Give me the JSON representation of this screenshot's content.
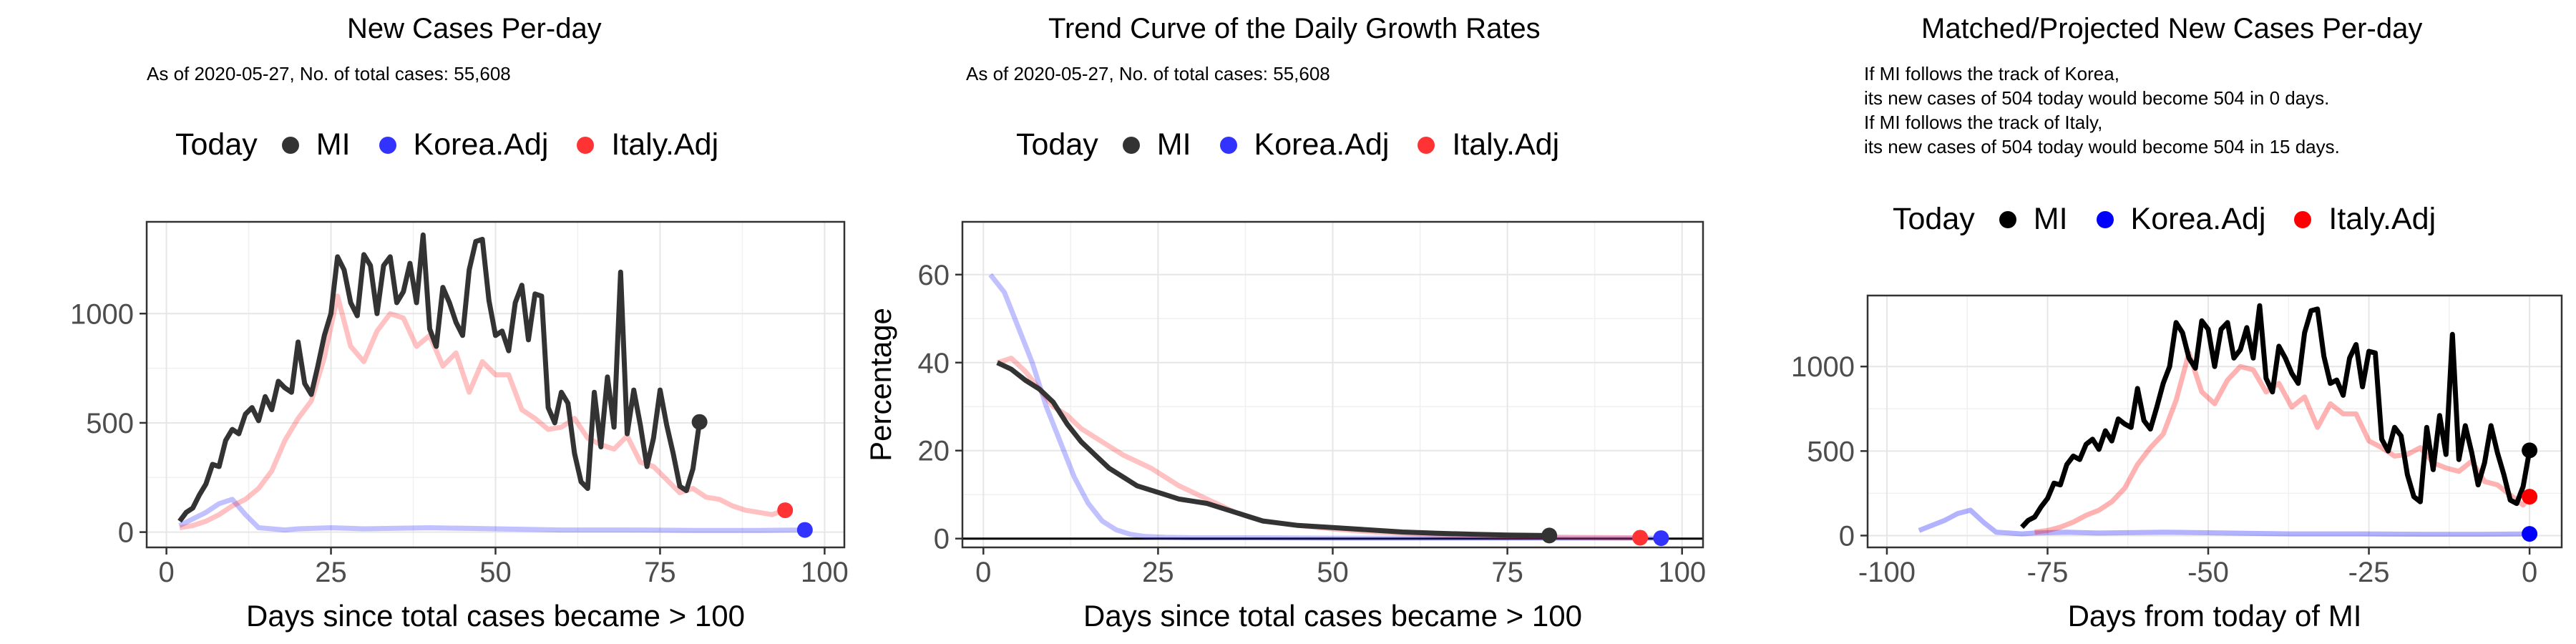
{
  "panels": [
    {
      "title": "New Cases Per-day",
      "subtitle_lines": [
        "As of 2020-05-27, No. of total cases: 55,608"
      ],
      "legend": {
        "title": "Today",
        "items": [
          {
            "label": "MI",
            "color": "#333333"
          },
          {
            "label": "Korea.Adj",
            "color": "#3333ff"
          },
          {
            "label": "Italy.Adj",
            "color": "#ff3333"
          }
        ]
      }
    },
    {
      "title": "Trend Curve of the Daily Growth Rates",
      "subtitle_lines": [
        "As of 2020-05-27, No. of total cases: 55,608"
      ],
      "legend": {
        "title": "Today",
        "items": [
          {
            "label": "MI",
            "color": "#333333"
          },
          {
            "label": "Korea.Adj",
            "color": "#3333ff"
          },
          {
            "label": "Italy.Adj",
            "color": "#ff3333"
          }
        ]
      }
    },
    {
      "title": "Matched/Projected New Cases Per-day",
      "subtitle_lines": [
        "If MI follows the track of Korea,",
        "its new cases of 504 today would become 504 in 0 days.",
        "If MI follows the track of Italy,",
        "its new cases of 504 today would become 504 in 15 days."
      ],
      "legend": {
        "title": "Today",
        "items": [
          {
            "label": "MI",
            "color": "#000000"
          },
          {
            "label": "Korea.Adj",
            "color": "#0000ff"
          },
          {
            "label": "Italy.Adj",
            "color": "#ff0000"
          }
        ]
      }
    }
  ],
  "chart_data": [
    {
      "type": "line",
      "title": "New Cases Per-day",
      "xlabel": "Days since total cases became > 100",
      "ylabel": "",
      "xlim": [
        -3,
        103
      ],
      "ylim": [
        -70,
        1420
      ],
      "xticks": [
        0,
        25,
        50,
        75,
        100
      ],
      "yticks": [
        0,
        500,
        1000
      ],
      "grid": true,
      "series": [
        {
          "name": "MI",
          "color": "#333333",
          "x": [
            2,
            3,
            4,
            5,
            6,
            7,
            8,
            9,
            10,
            11,
            12,
            13,
            14,
            15,
            16,
            17,
            18,
            19,
            20,
            21,
            22,
            23,
            24,
            25,
            26,
            27,
            28,
            29,
            30,
            31,
            32,
            33,
            34,
            35,
            36,
            37,
            38,
            39,
            40,
            41,
            42,
            43,
            44,
            45,
            46,
            47,
            48,
            49,
            50,
            51,
            52,
            53,
            54,
            55,
            56,
            57,
            58,
            59,
            60,
            61,
            62,
            63,
            64,
            65,
            66,
            67,
            68,
            69,
            70,
            71,
            72,
            73,
            74,
            75,
            76,
            77,
            78,
            79,
            80,
            81
          ],
          "y": [
            50,
            90,
            110,
            170,
            220,
            310,
            300,
            420,
            470,
            450,
            540,
            570,
            510,
            620,
            560,
            690,
            660,
            640,
            870,
            680,
            630,
            760,
            900,
            1000,
            1260,
            1200,
            1050,
            990,
            1270,
            1220,
            1000,
            1220,
            1260,
            1050,
            1100,
            1230,
            1050,
            1360,
            930,
            850,
            1120,
            1050,
            960,
            900,
            1200,
            1330,
            1340,
            1060,
            900,
            920,
            830,
            1050,
            1130,
            880,
            1090,
            1080,
            570,
            500,
            640,
            590,
            360,
            230,
            200,
            640,
            390,
            710,
            480,
            1190,
            450,
            650,
            490,
            300,
            430,
            650,
            490,
            360,
            210,
            190,
            290,
            504
          ],
          "today": {
            "x": 81,
            "y": 504
          }
        },
        {
          "name": "Korea.Adj",
          "color": "#3333ff",
          "alpha": 0.3,
          "x": [
            2,
            4,
            6,
            8,
            10,
            12,
            14,
            16,
            18,
            20,
            25,
            30,
            40,
            50,
            60,
            70,
            80,
            90,
            97
          ],
          "y": [
            30,
            60,
            90,
            130,
            150,
            80,
            20,
            15,
            10,
            15,
            20,
            15,
            20,
            15,
            10,
            10,
            8,
            8,
            10
          ],
          "today": {
            "x": 97,
            "y": 10
          }
        },
        {
          "name": "Italy.Adj",
          "color": "#ff3333",
          "alpha": 0.3,
          "x": [
            2,
            4,
            6,
            8,
            10,
            12,
            14,
            16,
            18,
            20,
            22,
            24,
            26,
            28,
            30,
            32,
            34,
            36,
            38,
            40,
            42,
            44,
            46,
            48,
            50,
            52,
            54,
            56,
            58,
            60,
            62,
            64,
            66,
            68,
            70,
            72,
            74,
            76,
            78,
            80,
            82,
            84,
            86,
            88,
            90,
            92,
            94
          ],
          "y": [
            20,
            30,
            50,
            80,
            120,
            150,
            200,
            280,
            420,
            520,
            600,
            800,
            1080,
            850,
            780,
            920,
            1000,
            980,
            850,
            900,
            760,
            820,
            640,
            780,
            720,
            720,
            560,
            520,
            470,
            480,
            520,
            430,
            400,
            380,
            440,
            320,
            300,
            240,
            180,
            200,
            160,
            150,
            120,
            100,
            90,
            80,
            100
          ],
          "today": {
            "x": 94,
            "y": 100
          }
        }
      ]
    },
    {
      "type": "line",
      "title": "Trend Curve of the Daily Growth Rates",
      "xlabel": "Days since total cases became > 100",
      "ylabel": "Percentage",
      "xlim": [
        -3,
        103
      ],
      "ylim": [
        -2,
        72
      ],
      "xticks": [
        0,
        25,
        50,
        75,
        100
      ],
      "yticks": [
        0,
        20,
        40,
        60
      ],
      "grid": true,
      "hline": 0,
      "series": [
        {
          "name": "MI",
          "color": "#333333",
          "x": [
            2,
            4,
            6,
            8,
            10,
            12,
            14,
            16,
            18,
            20,
            22,
            24,
            26,
            28,
            30,
            32,
            34,
            36,
            38,
            40,
            45,
            50,
            55,
            60,
            65,
            70,
            75,
            81
          ],
          "y": [
            40,
            38.5,
            36,
            34,
            31,
            26,
            22,
            19,
            16,
            14,
            12,
            11,
            10,
            9,
            8.5,
            8,
            7,
            6,
            5,
            4,
            3,
            2.5,
            2,
            1.5,
            1.2,
            1,
            0.8,
            0.7
          ],
          "today": {
            "x": 81,
            "y": 0.7
          }
        },
        {
          "name": "Korea.Adj",
          "color": "#3333ff",
          "alpha": 0.3,
          "x": [
            1,
            3,
            5,
            7,
            9,
            11,
            13,
            15,
            17,
            19,
            21,
            23,
            26,
            30,
            40,
            50,
            60,
            70,
            80,
            90,
            97
          ],
          "y": [
            60,
            56,
            48,
            40,
            30,
            22,
            14,
            8,
            4,
            2,
            1,
            0.5,
            0.3,
            0.2,
            0.2,
            0.1,
            0.1,
            0.1,
            0.1,
            0.1,
            0.1
          ],
          "today": {
            "x": 97,
            "y": 0.1
          }
        },
        {
          "name": "Italy.Adj",
          "color": "#ff3333",
          "alpha": 0.3,
          "x": [
            2,
            4,
            6,
            8,
            10,
            12,
            14,
            16,
            18,
            20,
            22,
            24,
            26,
            28,
            30,
            32,
            34,
            36,
            38,
            40,
            45,
            50,
            55,
            60,
            65,
            70,
            75,
            80,
            85,
            90,
            94
          ],
          "y": [
            40,
            41,
            38,
            34,
            30,
            28,
            25,
            23,
            21,
            19,
            17.5,
            16,
            14,
            12,
            10.5,
            9,
            7.5,
            6,
            5,
            4,
            3,
            2.2,
            1.6,
            1.2,
            0.9,
            0.7,
            0.5,
            0.4,
            0.3,
            0.25,
            0.2
          ],
          "today": {
            "x": 94,
            "y": 0.2
          }
        }
      ]
    },
    {
      "type": "line",
      "title": "Matched/Projected New Cases Per-day",
      "xlabel": "Days from today of MI",
      "ylabel": "",
      "xlim": [
        -103,
        5
      ],
      "ylim": [
        -70,
        1420
      ],
      "xticks": [
        -100,
        -75,
        -50,
        -25,
        0
      ],
      "yticks": [
        0,
        500,
        1000
      ],
      "grid": true,
      "series": [
        {
          "name": "MI",
          "color": "#000000",
          "x": [
            -79,
            -78,
            -77,
            -76,
            -75,
            -74,
            -73,
            -72,
            -71,
            -70,
            -69,
            -68,
            -67,
            -66,
            -65,
            -64,
            -63,
            -62,
            -61,
            -60,
            -59,
            -58,
            -57,
            -56,
            -55,
            -54,
            -53,
            -52,
            -51,
            -50,
            -49,
            -48,
            -47,
            -46,
            -45,
            -44,
            -43,
            -42,
            -41,
            -40,
            -39,
            -38,
            -37,
            -36,
            -35,
            -34,
            -33,
            -32,
            -31,
            -30,
            -29,
            -28,
            -27,
            -26,
            -25,
            -24,
            -23,
            -22,
            -21,
            -20,
            -19,
            -18,
            -17,
            -16,
            -15,
            -14,
            -13,
            -12,
            -11,
            -10,
            -9,
            -8,
            -7,
            -6,
            -5,
            -4,
            -3,
            -2,
            -1,
            0
          ],
          "y": [
            50,
            90,
            110,
            170,
            220,
            310,
            300,
            420,
            470,
            450,
            540,
            570,
            510,
            620,
            560,
            690,
            660,
            640,
            870,
            680,
            630,
            760,
            900,
            1000,
            1260,
            1200,
            1050,
            990,
            1270,
            1220,
            1000,
            1220,
            1260,
            1050,
            1100,
            1230,
            1050,
            1360,
            930,
            850,
            1120,
            1050,
            960,
            900,
            1200,
            1330,
            1340,
            1060,
            900,
            920,
            830,
            1050,
            1130,
            880,
            1090,
            1080,
            570,
            500,
            640,
            590,
            360,
            230,
            200,
            640,
            390,
            710,
            480,
            1190,
            450,
            650,
            490,
            300,
            430,
            650,
            490,
            360,
            210,
            190,
            290,
            504
          ],
          "today": {
            "x": 0,
            "y": 504
          }
        },
        {
          "name": "Korea.Adj",
          "color": "#0000ff",
          "alpha": 0.3,
          "x": [
            -95,
            -93,
            -91,
            -89,
            -87,
            -85,
            -83,
            -81,
            -79,
            -77,
            -72,
            -67,
            -57,
            -47,
            -37,
            -27,
            -17,
            -7,
            0
          ],
          "y": [
            30,
            60,
            90,
            130,
            150,
            80,
            20,
            15,
            10,
            15,
            20,
            15,
            20,
            15,
            10,
            10,
            8,
            8,
            10
          ],
          "today": {
            "x": 0,
            "y": 10
          }
        },
        {
          "name": "Italy.Adj",
          "color": "#ff0000",
          "alpha": 0.3,
          "x": [
            -77,
            -75,
            -73,
            -71,
            -69,
            -67,
            -65,
            -63,
            -61,
            -59,
            -57,
            -55,
            -53,
            -51,
            -49,
            -47,
            -45,
            -43,
            -41,
            -39,
            -37,
            -35,
            -33,
            -31,
            -29,
            -27,
            -25,
            -23,
            -21,
            -19,
            -17,
            -15,
            -13,
            -11,
            -9,
            -7,
            -5,
            -3,
            -1,
            0
          ],
          "y": [
            20,
            30,
            50,
            80,
            120,
            150,
            200,
            280,
            420,
            520,
            600,
            800,
            1080,
            850,
            780,
            920,
            1000,
            980,
            850,
            900,
            760,
            820,
            640,
            780,
            720,
            720,
            560,
            520,
            470,
            480,
            520,
            430,
            400,
            380,
            440,
            320,
            300,
            240,
            180,
            230
          ],
          "today": {
            "x": 0,
            "y": 230
          }
        }
      ]
    }
  ]
}
